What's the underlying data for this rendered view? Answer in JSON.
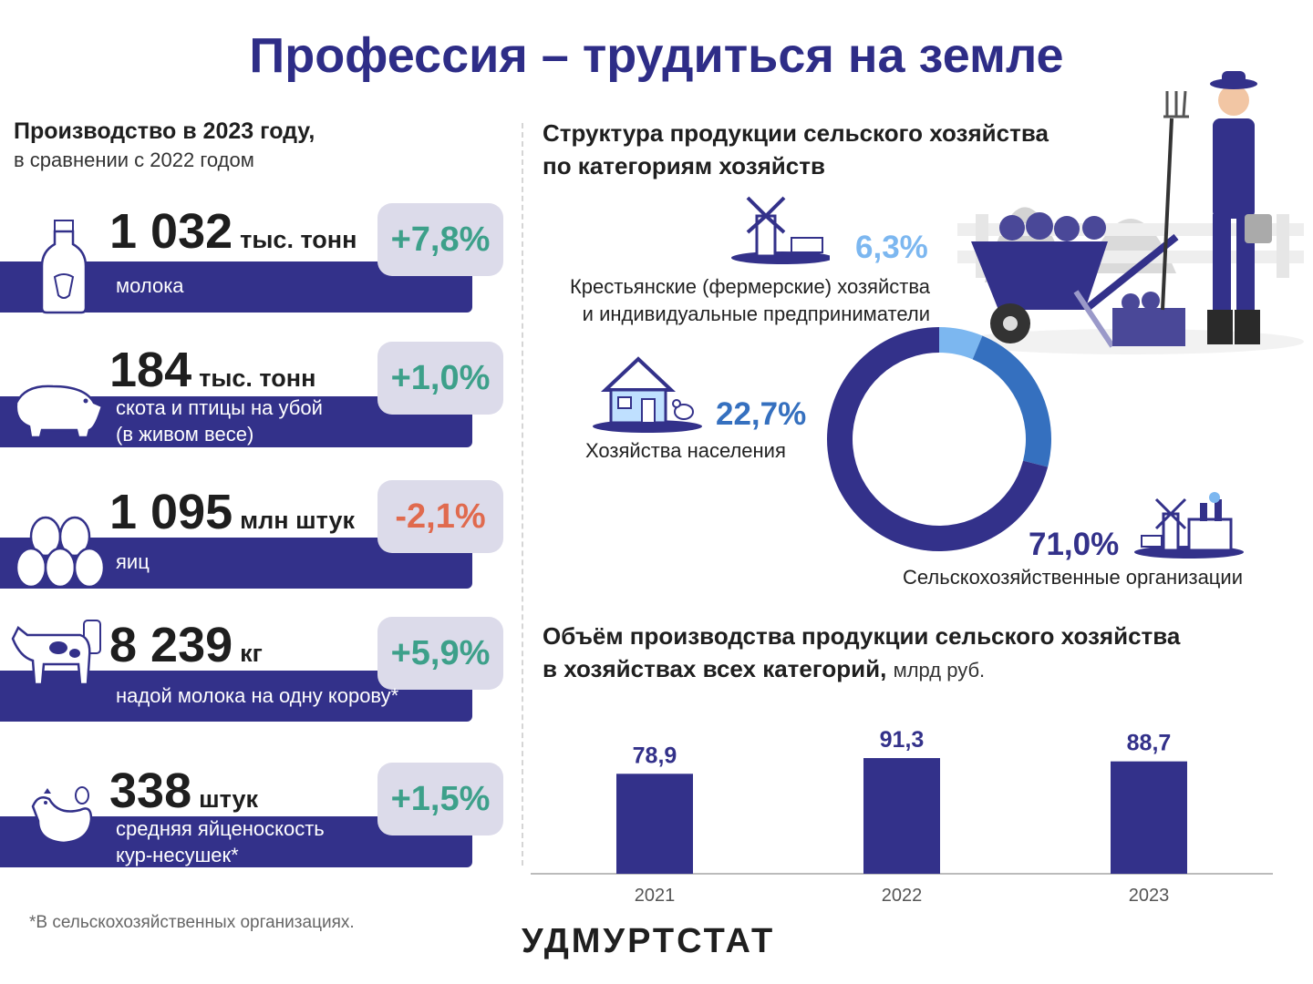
{
  "title": "Профессия – трудиться на земле",
  "left": {
    "heading": "Производство в 2023 году,",
    "subheading": "в сравнении с 2022 годом",
    "stats": [
      {
        "value": "1 032",
        "unit": "тыс. тонн",
        "change": "+7,8%",
        "label": "молока",
        "icon": "milk-bottle-icon",
        "change_dir": "up"
      },
      {
        "value": "184",
        "unit": "тыс. тонн",
        "change": "+1,0%",
        "label": "скота и птицы на убой\n(в живом весе)",
        "icon": "pig-icon",
        "change_dir": "up"
      },
      {
        "value": "1 095",
        "unit": "млн штук",
        "change": "-2,1%",
        "label": "яиц",
        "icon": "eggs-icon",
        "change_dir": "down"
      },
      {
        "value": "8 239",
        "unit": "кг",
        "change": "+5,9%",
        "label": "надой молока на одну корову*",
        "icon": "cow-icon",
        "change_dir": "up"
      },
      {
        "value": "338",
        "unit": "штук",
        "change": "+1,5%",
        "label": "средняя яйценоскость\nкур-несушек*",
        "icon": "hen-icon",
        "change_dir": "up"
      }
    ]
  },
  "structure": {
    "heading_line1": "Структура продукции сельского хозяйства",
    "heading_line2": "по категориям хозяйств",
    "categories": [
      {
        "pct": "6,3%",
        "label_line1": "Крестьянские (фермерские) хозяйства",
        "label_line2": "и индивидуальные предприниматели",
        "color": "#7cb7f0",
        "icon": "windmill-farm-icon"
      },
      {
        "pct": "22,7%",
        "label_line1": "Хозяйства населения",
        "label_line2": "",
        "color": "#3570bf",
        "icon": "house-icon"
      },
      {
        "pct": "71,0%",
        "label_line1": "Сельскохозяйственные организации",
        "label_line2": "",
        "color": "#33318a",
        "icon": "factory-farm-icon"
      }
    ]
  },
  "volume": {
    "heading_line1": "Объём производства продукции сельского хозяйства",
    "heading_line2": "в хозяйствах всех категорий,",
    "unit": "млрд руб."
  },
  "chart_data": [
    {
      "type": "pie",
      "title": "Структура продукции сельского хозяйства по категориям хозяйств",
      "categories": [
        "Крестьянские (фермерские) хозяйства и индивидуальные предприниматели",
        "Хозяйства населения",
        "Сельскохозяйственные организации"
      ],
      "values": [
        6.3,
        22.7,
        71.0
      ],
      "colors": [
        "#7cb7f0",
        "#3570bf",
        "#33318a"
      ],
      "donut": true
    },
    {
      "type": "bar",
      "title": "Объём производства продукции сельского хозяйства в хозяйствах всех категорий, млрд руб.",
      "categories": [
        "2021",
        "2022",
        "2023"
      ],
      "values": [
        78.9,
        91.3,
        88.7
      ],
      "value_labels": [
        "78,9",
        "91,3",
        "88,7"
      ],
      "xlabel": "",
      "ylabel": "",
      "ylim": [
        0,
        100
      ],
      "color": "#33318a",
      "grid": false
    }
  ],
  "footnote": "*В сельскохозяйственных организациях.",
  "brand": "УДМУРТСТАТ"
}
